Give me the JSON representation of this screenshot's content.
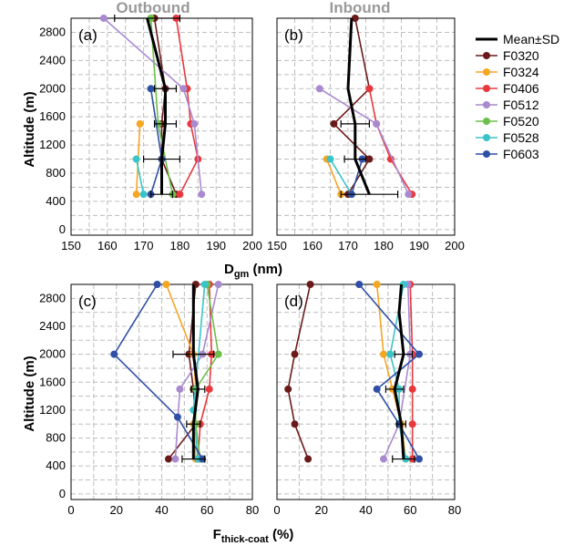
{
  "figure": {
    "col_titles": [
      "Outbound",
      "Inbound"
    ]
  },
  "legend": {
    "mean_label": "Mean±SD",
    "entries": [
      {
        "name": "F0320",
        "color": "#6b1a1a"
      },
      {
        "name": "F0324",
        "color": "#f5a623"
      },
      {
        "name": "F0406",
        "color": "#e8383d"
      },
      {
        "name": "F0512",
        "color": "#a98ad0"
      },
      {
        "name": "F0520",
        "color": "#6cc04a"
      },
      {
        "name": "F0528",
        "color": "#38c4c8"
      },
      {
        "name": "F0603",
        "color": "#2f4fa6"
      }
    ],
    "mean_color": "#000000"
  },
  "axes": {
    "y_label": "Altitude (m)",
    "x_label_top": {
      "main": "D",
      "sub": "gm",
      "unit": " (nm)"
    },
    "x_label_bottom": {
      "main": "F",
      "sub": "thick-coat",
      "unit": " (%)"
    }
  },
  "chart_data": [
    {
      "type": "line",
      "panel": "(a)",
      "x_ticks": [
        "150",
        "160",
        "170",
        "180",
        "190",
        "200"
      ],
      "xlim": [
        150,
        200
      ],
      "y_ticks": [
        "0",
        "400",
        "800",
        "1200",
        "1600",
        "2000",
        "2400",
        "2800"
      ],
      "ylim": [
        -80,
        3000
      ],
      "series": [
        {
          "name": "F0320",
          "points": [
            [
              179,
              500
            ],
            [
              175,
              1000
            ],
            [
              175,
              1500
            ],
            [
              176,
              2000
            ],
            [
              173,
              3000
            ]
          ]
        },
        {
          "name": "F0324",
          "points": [
            [
              168,
              500
            ],
            [
              169,
              1500
            ]
          ]
        },
        {
          "name": "F0406",
          "points": [
            [
              180,
              500
            ],
            [
              185,
              1000
            ],
            [
              183,
              1500
            ],
            [
              182,
              2000
            ],
            [
              179,
              3000
            ]
          ]
        },
        {
          "name": "F0512",
          "points": [
            [
              186,
              500
            ],
            [
              184,
              1500
            ],
            [
              181,
              2000
            ],
            [
              159,
              3000
            ]
          ]
        },
        {
          "name": "F0520",
          "points": [
            [
              178,
              500
            ],
            [
              174,
              1500
            ],
            [
              172,
              3000
            ]
          ]
        },
        {
          "name": "F0528",
          "points": [
            [
              170,
              500
            ],
            [
              168,
              1000
            ]
          ]
        },
        {
          "name": "F0603",
          "points": [
            [
              172,
              500
            ],
            [
              175,
              1000
            ],
            [
              172,
              2000
            ]
          ]
        },
        {
          "name": "Mean±SD",
          "points": [
            [
              175,
              500
            ],
            [
              175,
              1000
            ],
            [
              176,
              1500
            ],
            [
              176,
              2000
            ],
            [
              173,
              2600
            ],
            [
              171,
              3000
            ]
          ],
          "sd": [
            3,
            5,
            3,
            3,
            0,
            9
          ]
        }
      ]
    },
    {
      "type": "line",
      "panel": "(b)",
      "x_ticks": [
        "150",
        "160",
        "170",
        "180",
        "190",
        "200"
      ],
      "xlim": [
        150,
        200
      ],
      "y_ticks": [
        "0",
        "400",
        "800",
        "1200",
        "1600",
        "2000",
        "2400",
        "2800"
      ],
      "ylim": [
        -80,
        3000
      ],
      "series": [
        {
          "name": "F0320",
          "points": [
            [
              170,
              500
            ],
            [
              176,
              1000
            ],
            [
              166,
              1500
            ],
            [
              176,
              2000
            ],
            [
              172,
              3000
            ]
          ]
        },
        {
          "name": "F0324",
          "points": [
            [
              168,
              500
            ],
            [
              164,
              1000
            ]
          ]
        },
        {
          "name": "F0406",
          "points": [
            [
              188,
              500
            ],
            [
              182,
              1000
            ],
            [
              178,
              1500
            ],
            [
              176,
              2000
            ]
          ]
        },
        {
          "name": "F0512",
          "points": [
            [
              187,
              500
            ],
            [
              178,
              1500
            ],
            [
              162,
              2000
            ]
          ]
        },
        {
          "name": "F0528",
          "points": [
            [
              171,
              500
            ],
            [
              165,
              1000
            ]
          ]
        },
        {
          "name": "F0603",
          "points": [
            [
              171,
              500
            ],
            [
              174,
              1000
            ]
          ]
        },
        {
          "name": "Mean±SD",
          "points": [
            [
              176,
              500
            ],
            [
              172,
              1000
            ],
            [
              172,
              1500
            ],
            [
              170,
              2000
            ],
            [
              171,
              3000
            ]
          ],
          "sd": [
            8,
            3,
            4,
            0,
            0
          ]
        }
      ]
    },
    {
      "type": "line",
      "panel": "(c)",
      "x_ticks": [
        "0",
        "20",
        "40",
        "60",
        "80"
      ],
      "xlim": [
        0,
        80
      ],
      "y_ticks": [
        "0",
        "400",
        "800",
        "1200",
        "1600",
        "2000",
        "2400",
        "2800"
      ],
      "ylim": [
        -80,
        3000
      ],
      "series": [
        {
          "name": "F0320",
          "points": [
            [
              43,
              500
            ],
            [
              55,
              1000
            ],
            [
              54,
              1500
            ],
            [
              52,
              2000
            ],
            [
              55,
              3000
            ]
          ]
        },
        {
          "name": "F0324",
          "points": [
            [
              55,
              500
            ],
            [
              54,
              1000
            ],
            [
              55,
              1500
            ],
            [
              54,
              2000
            ],
            [
              42,
              3000
            ]
          ]
        },
        {
          "name": "F0406",
          "points": [
            [
              56,
              500
            ],
            [
              57,
              1000
            ],
            [
              61,
              1500
            ],
            [
              62,
              2000
            ],
            [
              61,
              3000
            ]
          ]
        },
        {
          "name": "F0512",
          "points": [
            [
              46,
              500
            ],
            [
              48,
              1500
            ],
            [
              58,
              2000
            ],
            [
              65,
              3000
            ]
          ]
        },
        {
          "name": "F0520",
          "points": [
            [
              57,
              500
            ],
            [
              55,
              1000
            ],
            [
              55,
              1500
            ],
            [
              65,
              2000
            ],
            [
              60,
              3000
            ]
          ]
        },
        {
          "name": "F0528",
          "points": [
            [
              56,
              500
            ],
            [
              54,
              1200
            ],
            [
              59,
              3000
            ]
          ]
        },
        {
          "name": "F0603",
          "points": [
            [
              58,
              500
            ],
            [
              47,
              1100
            ],
            [
              19,
              2000
            ],
            [
              38,
              3000
            ]
          ]
        },
        {
          "name": "Mean±SD",
          "points": [
            [
              54,
              500
            ],
            [
              54,
              1000
            ],
            [
              56,
              1500
            ],
            [
              54,
              2000
            ],
            [
              54,
              3000
            ]
          ],
          "sd": [
            5,
            3,
            3,
            9,
            0
          ]
        }
      ]
    },
    {
      "type": "line",
      "panel": "(d)",
      "x_ticks": [
        "0",
        "20",
        "40",
        "60",
        "80"
      ],
      "xlim": [
        0,
        80
      ],
      "y_ticks": [
        "0",
        "400",
        "800",
        "1200",
        "1600",
        "2000",
        "2400",
        "2800"
      ],
      "ylim": [
        -80,
        3000
      ],
      "series": [
        {
          "name": "F0320",
          "points": [
            [
              14,
              500
            ],
            [
              8,
              1000
            ],
            [
              5,
              1500
            ],
            [
              8,
              2000
            ],
            [
              15,
              3000
            ]
          ]
        },
        {
          "name": "F0324",
          "points": [
            [
              58,
              500
            ],
            [
              56,
              1000
            ],
            [
              52,
              1500
            ],
            [
              48,
              2000
            ],
            [
              45,
              3000
            ]
          ]
        },
        {
          "name": "F0406",
          "points": [
            [
              61,
              500
            ],
            [
              61,
              1000
            ],
            [
              61,
              1500
            ],
            [
              61,
              2000
            ],
            [
              60,
              3000
            ]
          ]
        },
        {
          "name": "F0512",
          "points": [
            [
              48,
              500
            ],
            [
              55,
              1000
            ],
            [
              60,
              2000
            ],
            [
              59,
              3000
            ]
          ]
        },
        {
          "name": "F0528",
          "points": [
            [
              58,
              500
            ],
            [
              55,
              1000
            ],
            [
              55,
              1500
            ],
            [
              51,
              2000
            ],
            [
              57,
              3000
            ]
          ]
        },
        {
          "name": "F0603",
          "points": [
            [
              64,
              500
            ],
            [
              55,
              1000
            ],
            [
              45,
              1500
            ],
            [
              64,
              2000
            ],
            [
              37,
              3000
            ]
          ]
        },
        {
          "name": "Mean±SD",
          "points": [
            [
              57,
              500
            ],
            [
              56,
              1000
            ],
            [
              53,
              1500
            ],
            [
              57,
              2000
            ],
            [
              55,
              2600
            ],
            [
              56,
              3000
            ]
          ],
          "sd": [
            5,
            2,
            4,
            4,
            0,
            0
          ]
        }
      ]
    }
  ]
}
